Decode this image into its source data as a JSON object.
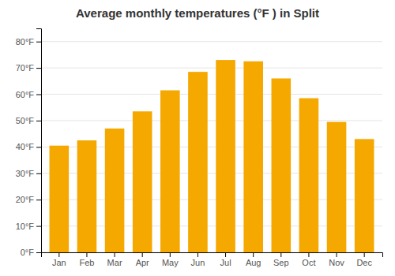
{
  "chart_data": {
    "type": "bar",
    "title": "Average monthly temperatures (°F ) in Split",
    "categories": [
      "Jan",
      "Feb",
      "Mar",
      "Apr",
      "May",
      "Jun",
      "Jul",
      "Aug",
      "Sep",
      "Oct",
      "Nov",
      "Dec"
    ],
    "values": [
      40.5,
      42.5,
      47.0,
      53.5,
      61.5,
      68.5,
      73.0,
      72.5,
      66.0,
      58.5,
      49.5,
      43.0
    ],
    "color": "#F5A800",
    "ylim": [
      0,
      85
    ],
    "yticks": [
      {
        "value": 0,
        "label": "0°F"
      },
      {
        "value": 10,
        "label": "10°F"
      },
      {
        "value": 20,
        "label": "20°F"
      },
      {
        "value": 30,
        "label": "30°F"
      },
      {
        "value": 40,
        "label": "40°F"
      },
      {
        "value": 50,
        "label": "50°F"
      },
      {
        "value": 60,
        "label": "60°F"
      },
      {
        "value": 70,
        "label": "70°F"
      },
      {
        "value": 80,
        "label": "80°F"
      }
    ],
    "grid": true
  }
}
